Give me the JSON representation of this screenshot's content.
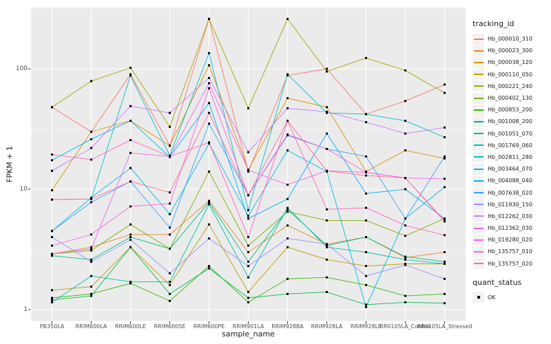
{
  "figure": {
    "background": "#FFFFFF",
    "panel_background": "#EBEBEB",
    "grid_color": "#FFFFFF",
    "tick_text_color": "#4D4D4D",
    "point_color": "#000000"
  },
  "axes": {
    "y_title": "FPKM + 1",
    "x_title": "sample_name",
    "y_tick_labels": [
      "100",
      "10",
      "1"
    ],
    "y_tick_values": [
      100,
      10,
      1
    ]
  },
  "legend": {
    "tracking_title": "tracking_id",
    "quant_title": "quant_status",
    "quant_label": "OK",
    "quant_shape": "black-square"
  },
  "chart_data": {
    "type": "line",
    "title": "",
    "xlabel": "sample_name",
    "ylabel": "FPKM + 1",
    "y_scale": "log10",
    "ylim": [
      1,
      320
    ],
    "y_major_gridlines": [
      1,
      10,
      100
    ],
    "y_minor_gridlines": [
      3.1623,
      31.623,
      316.23
    ],
    "grid": true,
    "legend_position": "right",
    "point_shape": "filled-square",
    "point_color": "#000000",
    "quant_status": "OK",
    "categories": [
      "PB350LA",
      "RRIM600LA",
      "RRIM600LE",
      "RRIM600SE",
      "RRIM600PE",
      "RRIM901LA",
      "RRIM928BA",
      "RRIM928LA",
      "RRIM928LE",
      "RRII105LA_Control",
      "RRII105LA_Stressed"
    ],
    "series": [
      {
        "name": "Hb_000010_310",
        "color": "#F8766D",
        "values": [
          48,
          30,
          90,
          23,
          260,
          14,
          88,
          100,
          42,
          54,
          74
        ]
      },
      {
        "name": "Hb_000023_300",
        "color": "#EA8331",
        "values": [
          2.9,
          3.3,
          4.2,
          4.2,
          8,
          3,
          5,
          3.5,
          4,
          2.7,
          3
        ]
      },
      {
        "name": "Hb_000038_120",
        "color": "#D89000",
        "values": [
          9.8,
          30,
          37,
          23,
          107,
          14.5,
          57,
          48,
          14,
          21,
          18
        ]
      },
      {
        "name": "Hb_000110_050",
        "color": "#C09B00",
        "values": [
          1.45,
          1.55,
          3.3,
          1.6,
          5.1,
          1.4,
          3.3,
          2.6,
          2.3,
          2.4,
          2.4
        ]
      },
      {
        "name": "Hb_000221_240",
        "color": "#A3A500",
        "values": [
          48,
          79,
          102,
          33,
          260,
          47,
          260,
          95,
          123,
          97,
          63
        ]
      },
      {
        "name": "Hb_000402_130",
        "color": "#7CAE00",
        "values": [
          2.9,
          3.1,
          5.1,
          3.2,
          14,
          3.4,
          6.5,
          5.5,
          5.5,
          4.1,
          5.7
        ]
      },
      {
        "name": "Hb_000853_200",
        "color": "#39B600",
        "values": [
          1.25,
          1.35,
          1.65,
          1.18,
          2.3,
          1.15,
          1.8,
          1.85,
          1.6,
          1.3,
          1.35
        ]
      },
      {
        "name": "Hb_001008_200",
        "color": "#00BB4E",
        "values": [
          1.2,
          1.3,
          3.3,
          1.35,
          2.2,
          1.25,
          1.35,
          1.4,
          1.1,
          1.15,
          1.13
        ]
      },
      {
        "name": "Hb_001051_070",
        "color": "#00BF7D",
        "values": [
          2.8,
          2.6,
          4,
          3.2,
          7.8,
          2.5,
          6.8,
          3.4,
          4,
          2.75,
          2.5
        ]
      },
      {
        "name": "Hb_001769_060",
        "color": "#00C1A3",
        "values": [
          1.15,
          1.9,
          1.7,
          1.7,
          7.5,
          1.85,
          7,
          3.3,
          3,
          2.6,
          2.4
        ]
      },
      {
        "name": "Hb_002811_280",
        "color": "#00BFC4",
        "values": [
          8.2,
          8.3,
          88,
          19,
          135,
          6.7,
          90,
          43,
          42,
          37,
          27
        ]
      },
      {
        "name": "Hb_003464_070",
        "color": "#00BAE0",
        "values": [
          4.5,
          8.5,
          15,
          6.2,
          24,
          6,
          21,
          14,
          1.05,
          5.7,
          10.4
        ]
      },
      {
        "name": "Hb_004088_040",
        "color": "#00B0F6",
        "values": [
          17.4,
          26,
          37,
          18.5,
          52,
          5.7,
          8.3,
          29,
          9.2,
          10,
          5.7
        ]
      },
      {
        "name": "Hb_007638_020",
        "color": "#35A2FF",
        "values": [
          4.5,
          7.8,
          11.6,
          4.8,
          35,
          8.9,
          28,
          21.6,
          18.7,
          5.7,
          18.7
        ]
      },
      {
        "name": "Hb_011930_150",
        "color": "#9590FF",
        "values": [
          4,
          2.5,
          3.8,
          2,
          3.9,
          2.3,
          3.9,
          3.5,
          1.9,
          2.35,
          1.8
        ]
      },
      {
        "name": "Hb_012262_030",
        "color": "#C77CFF",
        "values": [
          14.2,
          22,
          49,
          43,
          84,
          20.3,
          47,
          44,
          36,
          29,
          32.5
        ]
      },
      {
        "name": "Hb_012362_030",
        "color": "#E76BF3",
        "values": [
          2.9,
          3.2,
          20,
          18.7,
          76,
          14.4,
          10.9,
          14.2,
          13.8,
          12.4,
          12.2
        ]
      },
      {
        "name": "Hb_019280_020",
        "color": "#FA62DB",
        "values": [
          3.4,
          4.2,
          7.2,
          7.6,
          69,
          8.9,
          28.5,
          21.6,
          13.8,
          12.4,
          5.5
        ]
      },
      {
        "name": "Hb_135757_010",
        "color": "#FF62BC",
        "values": [
          19.4,
          17.6,
          25.6,
          18.7,
          24.5,
          4,
          37,
          6.8,
          7,
          5,
          4.15
        ]
      },
      {
        "name": "Hb_135757_020",
        "color": "#FF6A98",
        "values": [
          8.2,
          8.3,
          11.6,
          9.4,
          43,
          8.9,
          37,
          14.2,
          13,
          12.4,
          5.4
        ]
      }
    ]
  }
}
